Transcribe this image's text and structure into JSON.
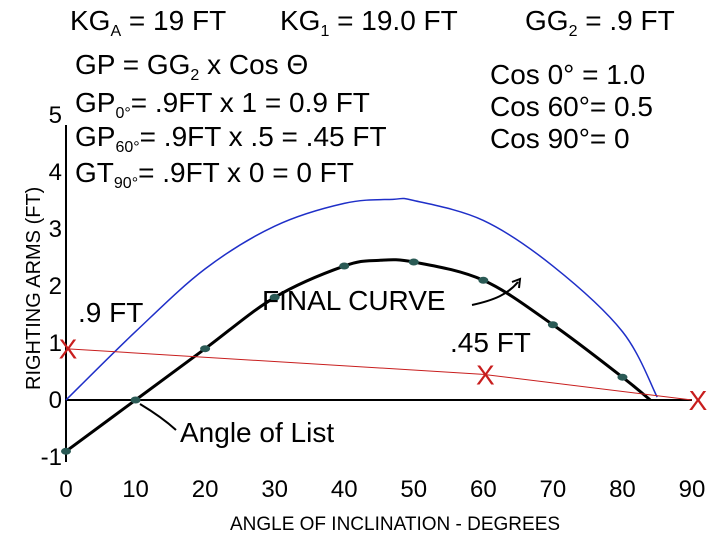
{
  "header": {
    "kga": "KG",
    "kga_sub": "A",
    "kga_val": " = 19 FT",
    "kg1": "KG",
    "kg1_sub": "1",
    "kg1_val": " = 19.0 FT",
    "gg2": "GG",
    "gg2_sub": "2",
    "gg2_val": " = .9 FT"
  },
  "formulas": {
    "gp_a": "GP = GG",
    "gp_sub": "2",
    "gp_b": " x Cos Θ",
    "gp0_a": "GP",
    "gp0_sub": "0°",
    "gp0_b": "= .9FT x 1 = 0.9 FT",
    "gp60_a": "GP",
    "gp60_sub": "60°",
    "gp60_b": "= .9FT x .5 = .45 FT",
    "gt90_a": "GT",
    "gt90_sub": "90°",
    "gt90_b": "= .9FT x 0 = 0 FT"
  },
  "cos_table": [
    "Cos 0° = 1.0",
    "Cos 60°= 0.5",
    "Cos 90°= 0"
  ],
  "annotations": {
    "final_curve": "FINAL CURVE",
    "gp0_value": ".9 FT",
    "gp60_value": ".45 FT",
    "angle_of_list": "Angle of List",
    "x_marker": "X"
  },
  "colors": {
    "blue_curve": "#1f2fc8",
    "final_curve": "#000000",
    "correction_line": "#c81e1e",
    "marker": "#c81e1e",
    "points": "#2a5a55"
  },
  "chart_data": {
    "type": "line",
    "xlabel": "ANGLE OF INCLINATION - DEGREES",
    "ylabel": "RIGHTING ARMS (FT)",
    "xlim": [
      0,
      90
    ],
    "ylim": [
      -1,
      5
    ],
    "x_ticks": [
      "0",
      "10",
      "20",
      "30",
      "40",
      "50",
      "60",
      "70",
      "80",
      "90"
    ],
    "y_ticks": [
      "-1",
      "0",
      "1",
      "2",
      "3",
      "4",
      "5"
    ],
    "grid": false,
    "series": [
      {
        "x": [
          0,
          10,
          20,
          30,
          40,
          47,
          50,
          60,
          70,
          80,
          85
        ],
        "y": [
          0,
          1.2,
          2.3,
          3.05,
          3.45,
          3.52,
          3.5,
          3.15,
          2.35,
          1.2,
          0.05
        ]
      },
      {
        "name": "FINAL CURVE",
        "x": [
          0,
          10,
          20,
          30,
          40,
          45,
          50,
          60,
          70,
          80,
          84
        ],
        "y": [
          -0.9,
          0.0,
          0.9,
          1.8,
          2.35,
          2.45,
          2.42,
          2.1,
          1.32,
          0.4,
          0.0
        ]
      },
      {
        "x": [
          0,
          60,
          90
        ],
        "y": [
          0.9,
          0.45,
          0.0
        ]
      }
    ],
    "points": {
      "x": [
        0,
        10,
        20,
        30,
        40,
        50,
        60,
        70,
        80
      ],
      "y": [
        -0.9,
        0.0,
        0.9,
        1.8,
        2.35,
        2.42,
        2.1,
        1.32,
        0.4
      ]
    },
    "markers": {
      "x": [
        0,
        60,
        90
      ],
      "y": [
        0.9,
        0.45,
        0.0
      ]
    }
  }
}
